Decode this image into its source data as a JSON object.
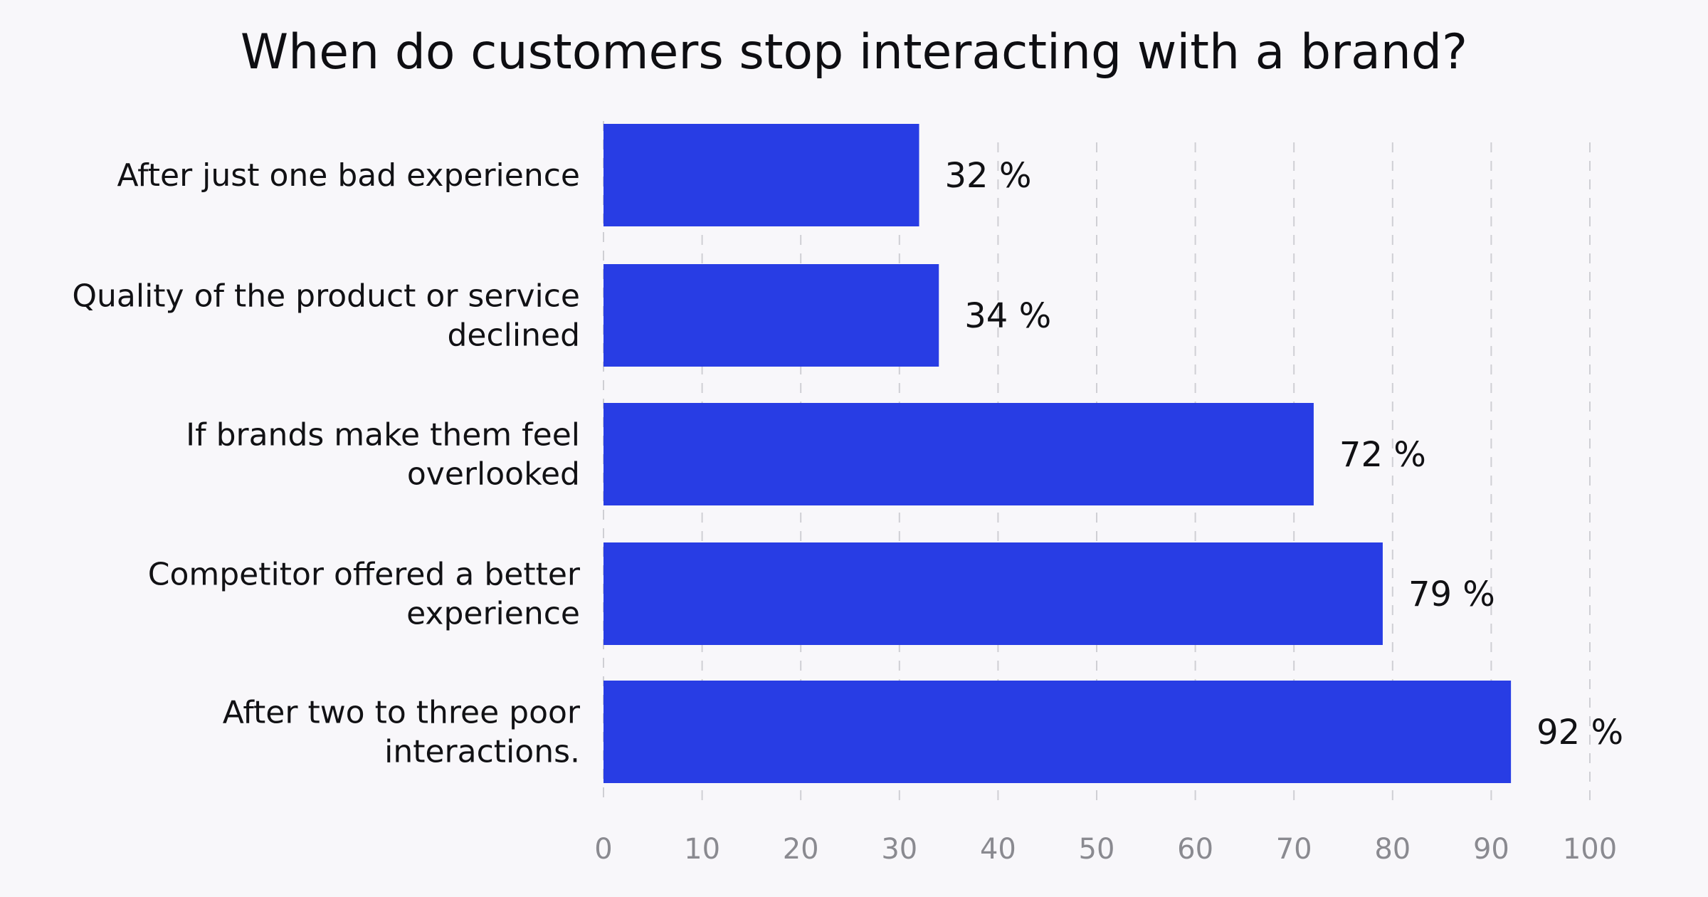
{
  "chart_data": {
    "type": "bar",
    "orientation": "horizontal",
    "title": "When do customers stop interacting with a brand?",
    "categories": [
      [
        "After just one bad experience"
      ],
      [
        "Quality of the product or service",
        "declined"
      ],
      [
        "If brands make them feel",
        "overlooked"
      ],
      [
        "Competitor offered a better",
        "experience"
      ],
      [
        "After two to three poor",
        "interactions."
      ]
    ],
    "values": [
      32,
      34,
      72,
      79,
      92
    ],
    "value_labels": [
      "32 %",
      "34 %",
      "72 %",
      "79 %",
      "92 %"
    ],
    "xlim": [
      0,
      100
    ],
    "x_ticks": [
      0,
      10,
      20,
      30,
      40,
      50,
      60,
      70,
      80,
      90,
      100
    ],
    "x_tick_labels": [
      "0",
      "10",
      "20",
      "30",
      "40",
      "50",
      "60",
      "70",
      "80",
      "90",
      "100"
    ],
    "grid": "vertical dashed",
    "bar_color": "#283de4"
  }
}
